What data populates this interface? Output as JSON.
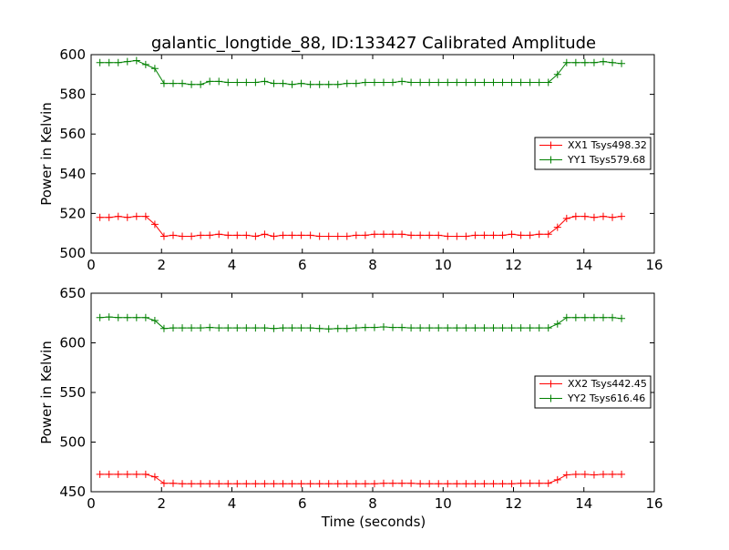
{
  "figure": {
    "title": "galantic_longtide_88, ID:133427 Calibrated Amplitude",
    "xlabel": "Time (seconds)"
  },
  "chart_data": [
    {
      "type": "line",
      "title": "galantic_longtide_88, ID:133427 Calibrated Amplitude",
      "xlabel": "",
      "ylabel": "Power in Kelvin",
      "xlim": [
        0,
        16
      ],
      "ylim": [
        500,
        600
      ],
      "xticks": [
        "0",
        "2",
        "4",
        "6",
        "8",
        "10",
        "12",
        "14",
        "16"
      ],
      "yticks": [
        "500",
        "520",
        "540",
        "560",
        "580",
        "600"
      ],
      "grid": false,
      "legend_position": "center-right",
      "x": [
        0.25,
        0.51,
        0.77,
        1.03,
        1.29,
        1.55,
        1.81,
        2.07,
        2.33,
        2.59,
        2.85,
        3.11,
        3.37,
        3.63,
        3.89,
        4.15,
        4.41,
        4.67,
        4.93,
        5.19,
        5.45,
        5.71,
        5.97,
        6.23,
        6.49,
        6.75,
        7.01,
        7.27,
        7.53,
        7.79,
        8.05,
        8.31,
        8.57,
        8.83,
        9.09,
        9.35,
        9.61,
        9.87,
        10.13,
        10.39,
        10.65,
        10.91,
        11.17,
        11.43,
        11.69,
        11.95,
        12.21,
        12.47,
        12.73,
        12.99,
        13.25,
        13.51,
        13.77,
        14.03,
        14.29,
        14.55,
        14.81,
        15.07
      ],
      "series": [
        {
          "name": "XX1 Tsys498.32",
          "color": "#ff0000",
          "values": [
            518,
            518,
            518.5,
            518,
            518.5,
            518.5,
            514.5,
            508.5,
            509,
            508.5,
            508.5,
            509,
            509,
            509.5,
            509,
            509,
            509,
            508.5,
            509.5,
            508.5,
            509,
            509,
            509,
            509,
            508.5,
            508.5,
            508.5,
            508.5,
            509,
            509,
            509.5,
            509.5,
            509.5,
            509.5,
            509,
            509,
            509,
            509,
            508.5,
            508.5,
            508.5,
            509,
            509,
            509,
            509,
            509.5,
            509,
            509,
            509.5,
            509.5,
            513,
            517.5,
            518.5,
            518.5,
            518,
            518.5,
            518,
            518.5
          ]
        },
        {
          "name": "YY1 Tsys579.68",
          "color": "#008000",
          "values": [
            596,
            596,
            596,
            596.5,
            597,
            595,
            593,
            585.5,
            585.5,
            585.5,
            585,
            585,
            586.5,
            586.5,
            586,
            586,
            586,
            586,
            586.5,
            585.5,
            585.5,
            585,
            585.5,
            585,
            585,
            585,
            585,
            585.5,
            585.5,
            586,
            586,
            586,
            586,
            586.5,
            586,
            586,
            586,
            586,
            586,
            586,
            586,
            586,
            586,
            586,
            586,
            586,
            586,
            586,
            586,
            586,
            590,
            596,
            596,
            596,
            596,
            596.5,
            596,
            595.5
          ]
        }
      ]
    },
    {
      "type": "line",
      "title": "",
      "xlabel": "Time (seconds)",
      "ylabel": "Power in Kelvin",
      "xlim": [
        0,
        16
      ],
      "ylim": [
        450,
        650
      ],
      "xticks": [
        "0",
        "2",
        "4",
        "6",
        "8",
        "10",
        "12",
        "14",
        "16"
      ],
      "yticks": [
        "450",
        "500",
        "550",
        "600",
        "650"
      ],
      "grid": false,
      "legend_position": "center-right",
      "x": [
        0.25,
        0.51,
        0.77,
        1.03,
        1.29,
        1.55,
        1.81,
        2.07,
        2.33,
        2.59,
        2.85,
        3.11,
        3.37,
        3.63,
        3.89,
        4.15,
        4.41,
        4.67,
        4.93,
        5.19,
        5.45,
        5.71,
        5.97,
        6.23,
        6.49,
        6.75,
        7.01,
        7.27,
        7.53,
        7.79,
        8.05,
        8.31,
        8.57,
        8.83,
        9.09,
        9.35,
        9.61,
        9.87,
        10.13,
        10.39,
        10.65,
        10.91,
        11.17,
        11.43,
        11.69,
        11.95,
        12.21,
        12.47,
        12.73,
        12.99,
        13.25,
        13.51,
        13.77,
        14.03,
        14.29,
        14.55,
        14.81,
        15.07
      ],
      "series": [
        {
          "name": "XX2 Tsys442.45",
          "color": "#ff0000",
          "values": [
            467.5,
            467.5,
            467.5,
            467.5,
            467.5,
            467.5,
            465,
            458.5,
            458.5,
            458,
            458,
            458,
            458,
            458,
            458,
            458,
            458,
            458,
            458,
            458,
            458,
            458,
            458,
            458,
            458,
            458,
            458,
            458,
            458,
            458,
            458,
            458.5,
            458.5,
            458.5,
            458.5,
            458,
            458,
            458,
            458,
            458,
            458,
            458,
            458,
            458,
            458,
            458,
            458.5,
            458.5,
            458.5,
            458.5,
            462,
            467,
            467.5,
            467.5,
            467,
            467.5,
            467.5,
            467.5
          ]
        },
        {
          "name": "YY2 Tsys616.46",
          "color": "#008000",
          "values": [
            625.5,
            626,
            625.5,
            625.5,
            625.5,
            625.5,
            622.5,
            614.5,
            615,
            615,
            615,
            615,
            615.5,
            615,
            615,
            615,
            615,
            615,
            615,
            614.5,
            615,
            615,
            615,
            615,
            614.5,
            614,
            614.5,
            614.5,
            615,
            615.5,
            615.5,
            616,
            615.5,
            615.5,
            615,
            615,
            615,
            615,
            615,
            615,
            615,
            615,
            615,
            615,
            615,
            615,
            615,
            615,
            615,
            615,
            619,
            625.5,
            625.5,
            625.5,
            625.5,
            625.5,
            625.5,
            624.5
          ]
        }
      ]
    }
  ]
}
